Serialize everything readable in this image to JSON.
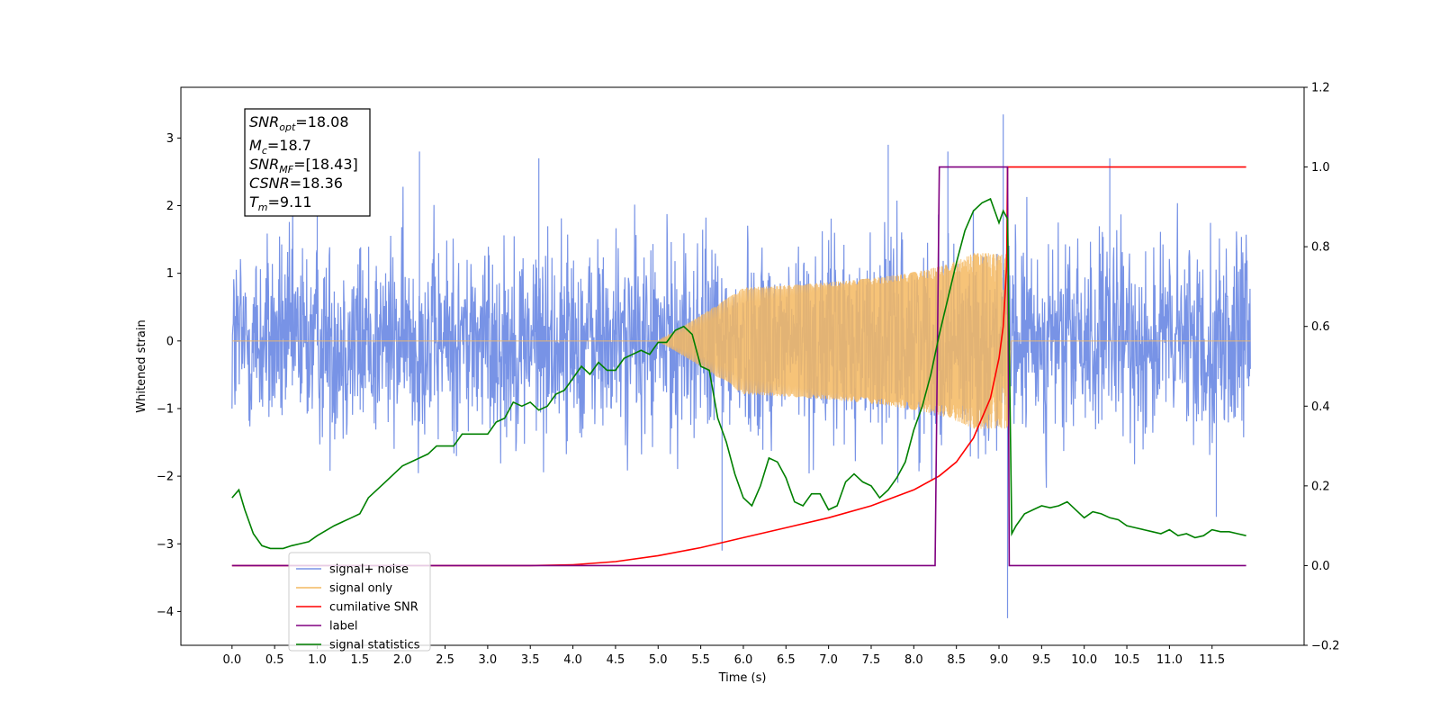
{
  "chart_data": {
    "type": "line",
    "xlabel": "Time (s)",
    "ylabel": "Whitened strain",
    "xlim": [
      -0.6,
      12.58
    ],
    "ylim": [
      -4.5,
      3.75
    ],
    "y2lim": [
      -0.2,
      1.2
    ],
    "x_ticks": [
      "0.0",
      "0.5",
      "1.0",
      "1.5",
      "2.0",
      "2.5",
      "3.0",
      "3.5",
      "4.0",
      "4.5",
      "5.0",
      "5.5",
      "6.0",
      "6.5",
      "7.0",
      "7.5",
      "8.0",
      "8.5",
      "9.0",
      "9.5",
      "10.0",
      "10.5",
      "11.0",
      "11.5"
    ],
    "y_ticks": [
      "3",
      "2",
      "1",
      "0",
      "−1",
      "−2",
      "−3",
      "−4"
    ],
    "y2_ticks": [
      "1.2",
      "1.0",
      "0.8",
      "0.6",
      "0.4",
      "0.2",
      "0.0",
      "−0.2"
    ],
    "annotation": {
      "snr_opt": {
        "sym": "SNR",
        "sub": "opt",
        "val": "=18.08"
      },
      "mc": {
        "sym": "M",
        "sub": "c",
        "val": "=18.7"
      },
      "snr_mf": {
        "sym": "SNR",
        "sub": "MF",
        "val": "=[18.43]"
      },
      "csnr": {
        "sym": "CSNR",
        "sub": "",
        "val": "=18.36"
      },
      "tm": {
        "sym": "T",
        "sub": "m",
        "val": "=9.11"
      }
    },
    "legend_position": "lower-left",
    "series": [
      {
        "name": "signal+ noise",
        "axis": "left",
        "color": "#7893e6",
        "noise_std": 0.75,
        "spikes": [
          [
            1.0,
            2.1
          ],
          [
            2.2,
            2.8
          ],
          [
            3.6,
            2.7
          ],
          [
            7.7,
            2.9
          ],
          [
            8.4,
            2.8
          ],
          [
            9.05,
            3.35
          ],
          [
            9.1,
            -4.1
          ],
          [
            10.3,
            2.7
          ],
          [
            5.75,
            -3.1
          ],
          [
            11.55,
            -2.6
          ]
        ]
      },
      {
        "name": "signal only",
        "axis": "left",
        "color": "#f4b860",
        "chirp": {
          "t_start": 5.0,
          "t_merge": 9.11,
          "peak": 1.3
        }
      },
      {
        "name": "cumilative SNR",
        "axis": "right",
        "color": "#ff0000",
        "x": [
          0,
          3.5,
          4.0,
          4.5,
          5.0,
          5.5,
          6.0,
          6.5,
          7.0,
          7.5,
          8.0,
          8.3,
          8.5,
          8.7,
          8.9,
          9.0,
          9.05,
          9.09,
          9.1,
          9.12,
          11.9
        ],
        "y": [
          0,
          0,
          0.002,
          0.01,
          0.025,
          0.045,
          0.07,
          0.095,
          0.12,
          0.15,
          0.19,
          0.225,
          0.26,
          0.32,
          0.42,
          0.52,
          0.6,
          0.75,
          1.0,
          1.0,
          1.0
        ]
      },
      {
        "name": "label",
        "axis": "right",
        "color": "#800080",
        "x": [
          0,
          8.25,
          8.3,
          9.1,
          9.12,
          11.9
        ],
        "y": [
          0,
          0,
          1.0,
          1.0,
          0,
          0
        ]
      },
      {
        "name": "signal statistics",
        "axis": "right",
        "color": "#008000",
        "x": [
          0,
          0.08,
          0.15,
          0.25,
          0.35,
          0.45,
          0.6,
          0.7,
          0.8,
          0.9,
          1.0,
          1.2,
          1.4,
          1.5,
          1.6,
          1.8,
          1.9,
          2.0,
          2.2,
          2.3,
          2.4,
          2.6,
          2.7,
          2.8,
          2.9,
          3.0,
          3.1,
          3.2,
          3.3,
          3.4,
          3.5,
          3.6,
          3.7,
          3.8,
          3.9,
          4.0,
          4.1,
          4.2,
          4.3,
          4.4,
          4.5,
          4.6,
          4.7,
          4.8,
          4.9,
          5.0,
          5.1,
          5.2,
          5.3,
          5.4,
          5.5,
          5.6,
          5.7,
          5.8,
          5.9,
          6.0,
          6.1,
          6.2,
          6.3,
          6.4,
          6.5,
          6.6,
          6.7,
          6.8,
          6.9,
          7.0,
          7.1,
          7.2,
          7.3,
          7.4,
          7.5,
          7.6,
          7.7,
          7.8,
          7.9,
          8.0,
          8.1,
          8.2,
          8.3,
          8.4,
          8.5,
          8.6,
          8.7,
          8.8,
          8.9,
          9.0,
          9.05,
          9.1,
          9.15,
          9.2,
          9.3,
          9.4,
          9.5,
          9.6,
          9.7,
          9.8,
          9.9,
          10.0,
          10.1,
          10.2,
          10.3,
          10.4,
          10.5,
          10.6,
          10.7,
          10.8,
          10.9,
          11.0,
          11.1,
          11.2,
          11.3,
          11.4,
          11.5,
          11.6,
          11.7,
          11.8,
          11.9
        ],
        "y": [
          0.17,
          0.19,
          0.14,
          0.08,
          0.05,
          0.043,
          0.043,
          0.05,
          0.055,
          0.06,
          0.075,
          0.1,
          0.12,
          0.13,
          0.17,
          0.21,
          0.23,
          0.25,
          0.27,
          0.28,
          0.3,
          0.3,
          0.33,
          0.33,
          0.33,
          0.33,
          0.36,
          0.37,
          0.41,
          0.4,
          0.41,
          0.39,
          0.4,
          0.43,
          0.44,
          0.47,
          0.5,
          0.48,
          0.51,
          0.49,
          0.49,
          0.52,
          0.53,
          0.54,
          0.53,
          0.56,
          0.56,
          0.59,
          0.6,
          0.58,
          0.5,
          0.49,
          0.37,
          0.31,
          0.23,
          0.17,
          0.15,
          0.2,
          0.27,
          0.26,
          0.22,
          0.16,
          0.15,
          0.18,
          0.18,
          0.14,
          0.15,
          0.21,
          0.23,
          0.21,
          0.2,
          0.17,
          0.19,
          0.22,
          0.26,
          0.34,
          0.4,
          0.48,
          0.58,
          0.67,
          0.76,
          0.84,
          0.89,
          0.91,
          0.92,
          0.86,
          0.89,
          0.87,
          0.08,
          0.1,
          0.13,
          0.14,
          0.15,
          0.145,
          0.15,
          0.16,
          0.14,
          0.12,
          0.135,
          0.13,
          0.12,
          0.115,
          0.1,
          0.095,
          0.09,
          0.085,
          0.08,
          0.09,
          0.075,
          0.08,
          0.07,
          0.075,
          0.09,
          0.085,
          0.085,
          0.08,
          0.075
        ]
      }
    ]
  }
}
